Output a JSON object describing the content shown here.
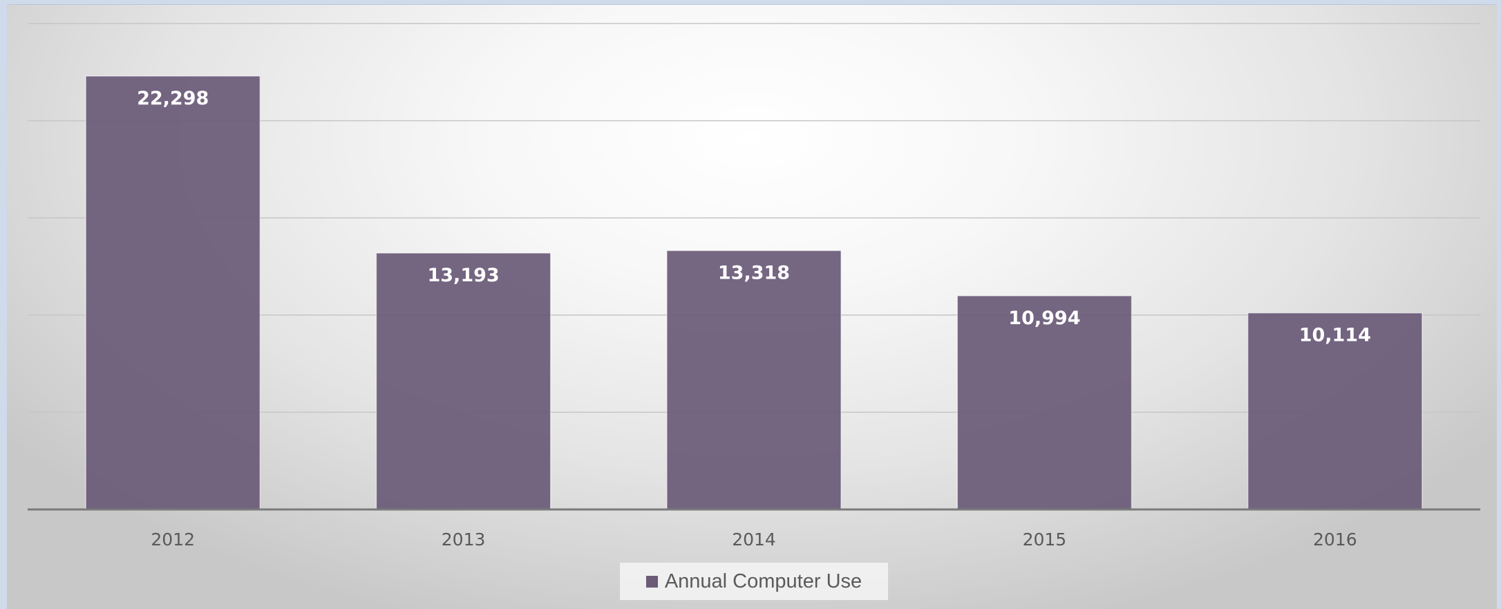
{
  "chart_data": {
    "type": "bar",
    "title": "",
    "xlabel": "",
    "ylabel": "",
    "categories": [
      "2012",
      "2013",
      "2014",
      "2015",
      "2016"
    ],
    "series": [
      {
        "name": "Annual Computer Use",
        "values": [
          22298,
          13193,
          13318,
          10994,
          10114
        ],
        "labels": [
          "22,298",
          "13,193",
          "13,318",
          "10,994",
          "10,114"
        ]
      }
    ],
    "ylim": [
      0,
      25000
    ],
    "y_grid_step": 5000,
    "grid": true,
    "y_tick_labels_visible": false,
    "legend_position": "bottom-center",
    "colors": {
      "bar": "#6b5a78",
      "axis": "#7a7a7a",
      "grid": "#c6c6c6"
    }
  }
}
